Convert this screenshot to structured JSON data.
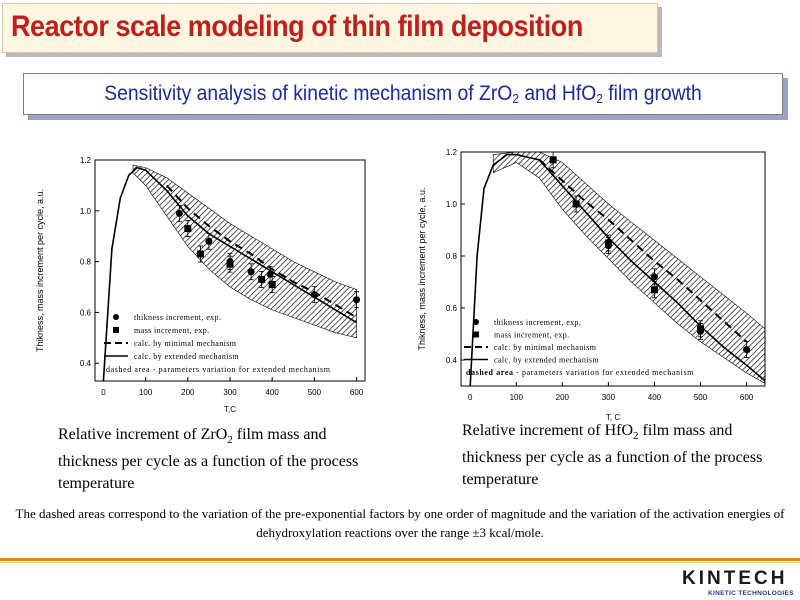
{
  "header": {
    "title": "Reactor scale modeling of thin film deposition",
    "subtitle_parts": [
      "Sensitivity analysis of kinetic mechanism of ZrO",
      "2",
      " and HfO",
      "2",
      " film growth"
    ]
  },
  "captions": {
    "left": [
      "Relative increment of ZrO",
      "2",
      " film mass and thickness per cycle as a function of the process temperature"
    ],
    "right": [
      "Relative increment of HfO",
      "2",
      " film mass and thickness per cycle as a function of the process temperature"
    ]
  },
  "footnote": "The dashed areas correspond to the variation of the pre-exponential factors by one order of magnitude and the variation of the activation energies of dehydroxylation reactions over the range ±3 kcal/mole.",
  "logo": {
    "text": "KINTECH",
    "tagline": "KINETIC TECHNOLOGIES"
  },
  "colors": {
    "title": "#c0201c",
    "subtitle": "#1c2a9a",
    "rule": "#e08a10"
  },
  "chart_data": [
    {
      "id": "zro2",
      "type": "line",
      "title": "",
      "xlabel": "T,C",
      "ylabel": "Thikness, mass increment per cycle, a.u.",
      "xlim": [
        -20,
        620
      ],
      "ylim": [
        0.33,
        1.2
      ],
      "xticks": [
        0,
        100,
        200,
        300,
        400,
        500,
        600
      ],
      "yticks": [
        0.4,
        0.6,
        0.8,
        1.0,
        1.2
      ],
      "ytick_labels": [
        "0.4",
        "0.6",
        "0.8",
        "1.0",
        "1.2"
      ],
      "legend": [
        {
          "marker": "circle",
          "label": "thikness increment, exp."
        },
        {
          "marker": "square",
          "label": "mass increment, exp."
        },
        {
          "marker": "dash",
          "label": "calc. by minimal mechanism"
        },
        {
          "marker": "line",
          "label": "calc. by extended mechanism"
        }
      ],
      "legend_note": "dashed area - parameters variation for extended mechanism",
      "series": [
        {
          "name": "thikness increment, exp.",
          "kind": "points",
          "marker": "circle",
          "x": [
            180,
            250,
            300,
            350,
            395,
            500,
            600
          ],
          "y": [
            0.99,
            0.88,
            0.8,
            0.76,
            0.75,
            0.67,
            0.65
          ]
        },
        {
          "name": "mass increment, exp.",
          "kind": "points",
          "marker": "square",
          "x": [
            200,
            230,
            300,
            375,
            400
          ],
          "y": [
            0.93,
            0.83,
            0.79,
            0.73,
            0.71
          ]
        },
        {
          "name": "calc. by extended mechanism",
          "kind": "line",
          "style": "solid",
          "x": [
            0,
            20,
            40,
            60,
            80,
            100,
            150,
            200,
            250,
            300,
            350,
            400,
            450,
            500,
            550,
            600
          ],
          "y": [
            0.33,
            0.85,
            1.05,
            1.14,
            1.17,
            1.16,
            1.08,
            0.98,
            0.91,
            0.86,
            0.81,
            0.76,
            0.71,
            0.66,
            0.61,
            0.56
          ]
        },
        {
          "name": "calc. by minimal mechanism",
          "kind": "line",
          "style": "dashed",
          "x": [
            150,
            200,
            250,
            300,
            350,
            400,
            450,
            500,
            550,
            600
          ],
          "y": [
            1.1,
            1.01,
            0.94,
            0.88,
            0.83,
            0.77,
            0.72,
            0.68,
            0.63,
            0.58
          ]
        },
        {
          "name": "parameters variation band",
          "kind": "band",
          "x": [
            70,
            100,
            150,
            200,
            250,
            300,
            350,
            400,
            450,
            500,
            550,
            600
          ],
          "upper": [
            1.18,
            1.17,
            1.13,
            1.07,
            1.01,
            0.95,
            0.9,
            0.85,
            0.8,
            0.76,
            0.72,
            0.69
          ],
          "lower": [
            1.15,
            1.1,
            0.98,
            0.86,
            0.77,
            0.7,
            0.65,
            0.61,
            0.58,
            0.55,
            0.52,
            0.5
          ]
        }
      ]
    },
    {
      "id": "hfo2",
      "type": "line",
      "title": "",
      "xlabel": "T, C",
      "ylabel": "Thikness, mass increment per cycle, a.u.",
      "xlim": [
        -20,
        640
      ],
      "ylim": [
        0.3,
        1.2
      ],
      "xticks": [
        0,
        100,
        200,
        300,
        400,
        500,
        600
      ],
      "yticks": [
        0.4,
        0.6,
        0.8,
        1.0,
        1.2
      ],
      "ytick_labels": [
        "0.4",
        "0.6",
        "0.8",
        "1.0",
        "1.2"
      ],
      "legend": [
        {
          "marker": "circle",
          "label": "thikness increment, exp."
        },
        {
          "marker": "square",
          "label": "mass increment, exp."
        },
        {
          "marker": "dash",
          "label": "calc. by minimal mechanism"
        },
        {
          "marker": "line",
          "label": "calc. by extended mechanism"
        }
      ],
      "legend_note_bold": "dashed area",
      "legend_note": " - parameters variation for extended mechanism",
      "series": [
        {
          "name": "thikness increment, exp.",
          "kind": "points",
          "marker": "circle",
          "x": [
            300,
            400,
            500,
            600
          ],
          "y": [
            0.84,
            0.72,
            0.51,
            0.44
          ]
        },
        {
          "name": "mass increment, exp.",
          "kind": "points",
          "marker": "square",
          "x": [
            180,
            230,
            300,
            400,
            500
          ],
          "y": [
            1.17,
            1.0,
            0.85,
            0.67,
            0.52
          ]
        },
        {
          "name": "calc. by extended mechanism",
          "kind": "line",
          "style": "solid",
          "x": [
            0,
            15,
            30,
            50,
            80,
            100,
            150,
            200,
            250,
            300,
            350,
            400,
            450,
            500,
            550,
            600,
            640
          ],
          "y": [
            0.3,
            0.8,
            1.06,
            1.15,
            1.19,
            1.19,
            1.17,
            1.07,
            0.97,
            0.87,
            0.78,
            0.7,
            0.62,
            0.53,
            0.45,
            0.38,
            0.32
          ]
        },
        {
          "name": "calc. by minimal mechanism",
          "kind": "line",
          "style": "dashed",
          "x": [
            150,
            200,
            250,
            300,
            350,
            400,
            450,
            500,
            550,
            600
          ],
          "y": [
            1.17,
            1.09,
            1.01,
            0.94,
            0.86,
            0.78,
            0.71,
            0.63,
            0.55,
            0.47
          ]
        },
        {
          "name": "parameters variation band",
          "kind": "band",
          "x": [
            50,
            100,
            150,
            200,
            250,
            300,
            350,
            400,
            450,
            500,
            550,
            600,
            640
          ],
          "upper": [
            1.19,
            1.2,
            1.2,
            1.16,
            1.08,
            1.0,
            0.93,
            0.86,
            0.79,
            0.72,
            0.65,
            0.58,
            0.52
          ],
          "lower": [
            1.12,
            1.16,
            1.1,
            0.98,
            0.88,
            0.79,
            0.7,
            0.62,
            0.54,
            0.47,
            0.41,
            0.35,
            0.31
          ]
        }
      ]
    }
  ]
}
